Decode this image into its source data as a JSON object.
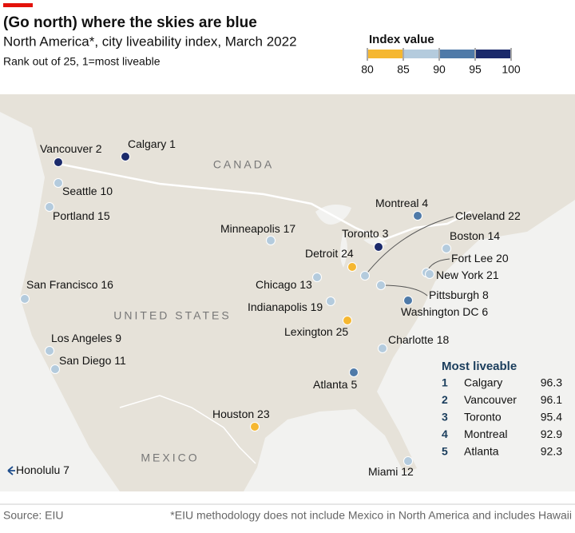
{
  "header": {
    "title": "(Go north) where the skies are blue",
    "subtitle": "North America*, city liveability index, March 2022",
    "note": "Rank out of 25, 1=most liveable"
  },
  "legend": {
    "title": "Index value",
    "ticks": [
      80,
      85,
      90,
      95,
      100
    ],
    "colors": [
      "#f5b731",
      "#b4cbdd",
      "#4f7aa8",
      "#1b2a6b"
    ]
  },
  "map_labels": [
    "CANADA",
    "UNITED STATES",
    "MEXICO"
  ],
  "cities": [
    {
      "name": "Vancouver",
      "rank": 2,
      "color": "#1b2a6b"
    },
    {
      "name": "Calgary",
      "rank": 1,
      "color": "#1b2a6b"
    },
    {
      "name": "Seattle",
      "rank": 10,
      "color": "#b4cbdd"
    },
    {
      "name": "Portland",
      "rank": 15,
      "color": "#b4cbdd"
    },
    {
      "name": "San Francisco",
      "rank": 16,
      "color": "#b4cbdd"
    },
    {
      "name": "Los Angeles",
      "rank": 9,
      "color": "#b4cbdd"
    },
    {
      "name": "San Diego",
      "rank": 11,
      "color": "#b4cbdd"
    },
    {
      "name": "Honolulu",
      "rank": 7
    },
    {
      "name": "Minneapolis",
      "rank": 17,
      "color": "#b4cbdd"
    },
    {
      "name": "Chicago",
      "rank": 13,
      "color": "#b4cbdd"
    },
    {
      "name": "Detroit",
      "rank": 24,
      "color": "#f5b731"
    },
    {
      "name": "Toronto",
      "rank": 3,
      "color": "#1b2a6b"
    },
    {
      "name": "Montreal",
      "rank": 4,
      "color": "#4f7aa8"
    },
    {
      "name": "Cleveland",
      "rank": 22,
      "color": "#b4cbdd"
    },
    {
      "name": "Boston",
      "rank": 14,
      "color": "#b4cbdd"
    },
    {
      "name": "Fort Lee",
      "rank": 20,
      "color": "#b4cbdd"
    },
    {
      "name": "New York",
      "rank": 21,
      "color": "#b4cbdd"
    },
    {
      "name": "Pittsburgh",
      "rank": 8,
      "color": "#b4cbdd"
    },
    {
      "name": "Washington DC",
      "rank": 6,
      "color": "#4f7aa8"
    },
    {
      "name": "Indianapolis",
      "rank": 19,
      "color": "#b4cbdd"
    },
    {
      "name": "Lexington",
      "rank": 25,
      "color": "#f5b731"
    },
    {
      "name": "Charlotte",
      "rank": 18,
      "color": "#b4cbdd"
    },
    {
      "name": "Atlanta",
      "rank": 5,
      "color": "#4f7aa8"
    },
    {
      "name": "Houston",
      "rank": 23,
      "color": "#f5b731"
    },
    {
      "name": "Miami",
      "rank": 12,
      "color": "#b4cbdd"
    }
  ],
  "top_table": {
    "title": "Most liveable",
    "rows": [
      {
        "rank": 1,
        "city": "Calgary",
        "value": 96.3
      },
      {
        "rank": 2,
        "city": "Vancouver",
        "value": 96.1
      },
      {
        "rank": 3,
        "city": "Toronto",
        "value": 95.4
      },
      {
        "rank": 4,
        "city": "Montreal",
        "value": 92.9
      },
      {
        "rank": 5,
        "city": "Atlanta",
        "value": 92.3
      }
    ]
  },
  "footer": {
    "source": "Source: EIU",
    "footnote": "*EIU methodology does not include Mexico in North America and includes Hawaii"
  }
}
